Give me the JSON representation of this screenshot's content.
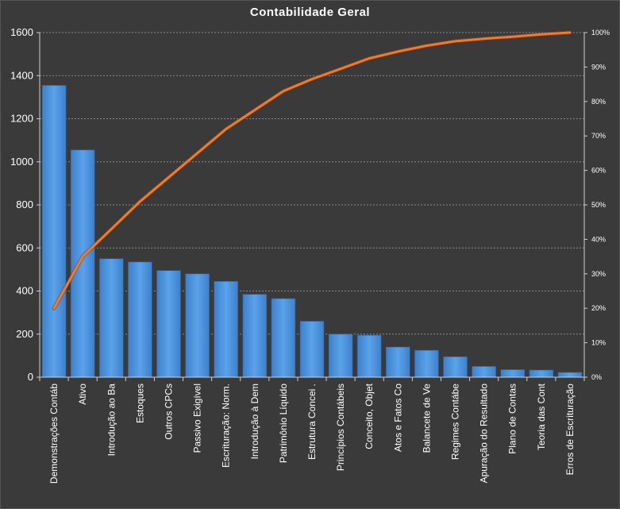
{
  "chart_data": {
    "type": "bar",
    "title": "Contabilidade  Geral",
    "categories": [
      "Demonstrações Contáb",
      "Ativo",
      "Introdução  ao Ba",
      "Estoques",
      "Outros CPCs",
      "Passivo Exigível",
      "Escrituração: Norm.",
      "Introdução à Dem",
      "Patrimônio Líquido",
      "Estrutura Concei .",
      "Princípios Contábeis",
      "Conceito, Objet",
      "Atos e Fatos Co",
      "Balancete de Ve",
      "Regimes Contábe",
      "Apuração do Resultado",
      "Plano de Contas",
      "Teoria das Cont",
      "Erros de Escrituração"
    ],
    "series": [
      {
        "type": "bar",
        "color": "#4a90d9",
        "values": [
          1355,
          1055,
          550,
          535,
          495,
          480,
          445,
          385,
          365,
          260,
          200,
          195,
          140,
          125,
          95,
          50,
          35,
          33,
          22
        ]
      },
      {
        "type": "line",
        "axis": "secondary",
        "color": "#f07b2c",
        "values": [
          0.2,
          0.35,
          0.43,
          0.51,
          0.58,
          0.65,
          0.72,
          0.775,
          0.83,
          0.865,
          0.895,
          0.925,
          0.945,
          0.962,
          0.975,
          0.982,
          0.988,
          0.995,
          1.0
        ]
      }
    ],
    "ylim": [
      0,
      1600
    ],
    "yticks": [
      "0",
      "200",
      "400",
      "600",
      "800",
      "1000",
      "1200",
      "1400",
      "1600"
    ],
    "y2lim": [
      0,
      1
    ],
    "y2ticks": [
      "0%",
      "10%",
      "20%",
      "30%",
      "40%",
      "50%",
      "60%",
      "70%",
      "80%",
      "90%",
      "100%"
    ],
    "grid": true,
    "legend": "none"
  }
}
